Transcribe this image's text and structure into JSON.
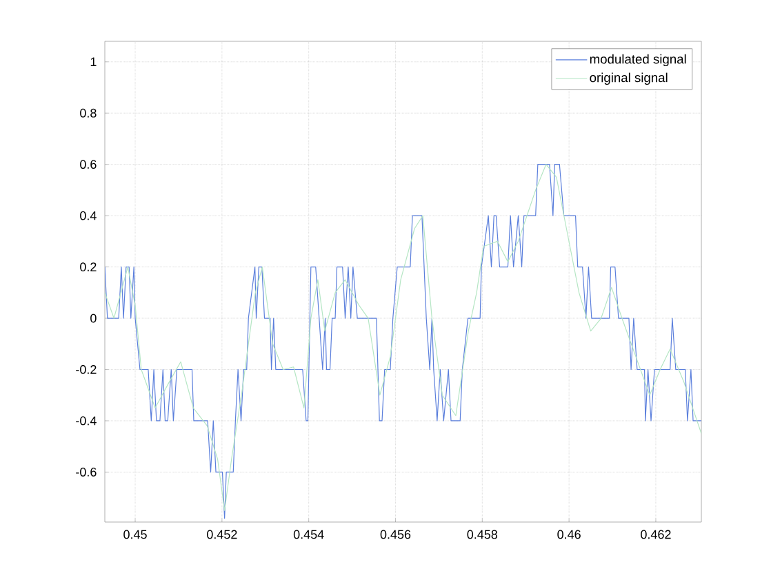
{
  "chart_data": {
    "type": "line",
    "xlim": [
      0.4493,
      0.46305
    ],
    "ylim": [
      -0.795,
      1.08
    ],
    "xticks": [
      0.45,
      0.452,
      0.454,
      0.456,
      0.458,
      0.46,
      0.462
    ],
    "yticks": [
      -0.6,
      -0.4,
      -0.2,
      0,
      0.2,
      0.4,
      0.6,
      0.8,
      1
    ],
    "grid": true,
    "legend": "top right",
    "marker": "none",
    "line_style": "solid",
    "series": [
      {
        "name": "modulated signal",
        "color": "#5b7fdc",
        "x": [
          0.4493,
          0.44936,
          0.44962,
          0.44968,
          0.44973,
          0.44979,
          0.44986,
          0.4499,
          0.44997,
          0.45,
          0.45011,
          0.4503,
          0.45037,
          0.45043,
          0.45049,
          0.45057,
          0.45064,
          0.45069,
          0.45075,
          0.45083,
          0.45088,
          0.45096,
          0.45131,
          0.45135,
          0.45167,
          0.45174,
          0.4518,
          0.45186,
          0.45201,
          0.45206,
          0.4521,
          0.45226,
          0.45231,
          0.45237,
          0.45244,
          0.4525,
          0.45257,
          0.45261,
          0.45276,
          0.45279,
          0.45285,
          0.45292,
          0.45298,
          0.45311,
          0.45314,
          0.45319,
          0.45324,
          0.45386,
          0.45394,
          0.45398,
          0.45405,
          0.45416,
          0.45432,
          0.45438,
          0.45441,
          0.45449,
          0.45454,
          0.45461,
          0.45465,
          0.45478,
          0.45484,
          0.45491,
          0.45497,
          0.45502,
          0.45512,
          0.45556,
          0.45563,
          0.45569,
          0.45575,
          0.45588,
          0.45594,
          0.45604,
          0.45634,
          0.45639,
          0.45661,
          0.45671,
          0.45679,
          0.45684,
          0.45688,
          0.45696,
          0.45703,
          0.45711,
          0.45722,
          0.45728,
          0.45749,
          0.45754,
          0.45767,
          0.45795,
          0.45798,
          0.45814,
          0.45821,
          0.45827,
          0.45832,
          0.4584,
          0.45859,
          0.45865,
          0.45872,
          0.45883,
          0.45891,
          0.45896,
          0.45923,
          0.45928,
          0.45955,
          0.45963,
          0.45967,
          0.45978,
          0.45988,
          0.46015,
          0.4602,
          0.46031,
          0.46039,
          0.46045,
          0.46052,
          0.46093,
          0.46096,
          0.46106,
          0.46114,
          0.46138,
          0.46143,
          0.46149,
          0.46157,
          0.46174,
          0.46176,
          0.46182,
          0.46189,
          0.46197,
          0.46233,
          0.46238,
          0.46246,
          0.46268,
          0.46273,
          0.46281,
          0.46286,
          0.46305
        ],
        "values": [
          0.2,
          0,
          0,
          0.2,
          0,
          0.2,
          0.2,
          0,
          0.2,
          0,
          -0.2,
          -0.2,
          -0.4,
          -0.2,
          -0.4,
          -0.4,
          -0.2,
          -0.4,
          -0.4,
          -0.2,
          -0.4,
          -0.2,
          -0.2,
          -0.4,
          -0.4,
          -0.6,
          -0.4,
          -0.6,
          -0.6,
          -0.78,
          -0.6,
          -0.6,
          -0.4,
          -0.2,
          -0.4,
          -0.2,
          -0.2,
          0,
          0.2,
          0,
          0.2,
          0.2,
          0,
          0,
          -0.2,
          0,
          -0.2,
          -0.2,
          -0.4,
          -0.4,
          0.2,
          0.2,
          -0.2,
          0,
          -0.2,
          -0.2,
          0,
          0,
          0.2,
          0.2,
          0,
          0.2,
          0,
          0.2,
          0,
          0,
          -0.4,
          -0.4,
          -0.2,
          -0.2,
          0,
          0.2,
          0.2,
          0.4,
          0.4,
          0,
          -0.2,
          0,
          -0.2,
          -0.4,
          -0.2,
          -0.4,
          -0.2,
          -0.4,
          -0.4,
          -0.2,
          0,
          0,
          0.2,
          0.4,
          0.2,
          0.4,
          0.4,
          0.2,
          0.2,
          0.4,
          0.2,
          0.4,
          0.2,
          0.4,
          0.4,
          0.6,
          0.6,
          0.4,
          0.6,
          0.6,
          0.4,
          0.4,
          0.2,
          0.2,
          0,
          0.2,
          0,
          0,
          0.2,
          0.2,
          0,
          0,
          -0.2,
          0,
          -0.2,
          -0.2,
          -0.4,
          -0.2,
          -0.4,
          -0.2,
          -0.2,
          0,
          -0.2,
          -0.2,
          -0.4,
          -0.2,
          -0.4,
          -0.4
        ]
      },
      {
        "name": "original signal",
        "color": "#b5e6c4",
        "x": [
          0.4493,
          0.44951,
          0.44983,
          0.45,
          0.45014,
          0.45046,
          0.45078,
          0.45105,
          0.45134,
          0.45166,
          0.4519,
          0.45206,
          0.45222,
          0.45245,
          0.45277,
          0.45293,
          0.45317,
          0.45341,
          0.45365,
          0.45389,
          0.45405,
          0.45421,
          0.45437,
          0.45461,
          0.45484,
          0.45516,
          0.45537,
          0.45564,
          0.45588,
          0.45612,
          0.45644,
          0.45663,
          0.45684,
          0.45708,
          0.45739,
          0.45768,
          0.45787,
          0.45803,
          0.45835,
          0.45859,
          0.45883,
          0.45923,
          0.45947,
          0.45971,
          0.45994,
          0.46023,
          0.4605,
          0.46074,
          0.46098,
          0.46122,
          0.46154,
          0.46186,
          0.4621,
          0.46233,
          0.46265,
          0.46305
        ],
        "values": [
          0.1,
          0,
          0.2,
          0.05,
          -0.2,
          -0.35,
          -0.25,
          -0.17,
          -0.35,
          -0.42,
          -0.55,
          -0.75,
          -0.55,
          -0.3,
          0.1,
          0.2,
          -0.1,
          -0.2,
          -0.19,
          -0.35,
          0,
          0.15,
          -0.05,
          0.1,
          0.15,
          0.05,
          0,
          -0.3,
          -0.15,
          0.15,
          0.35,
          0.4,
          0,
          -0.3,
          -0.38,
          -0.05,
          0.1,
          0.28,
          0.3,
          0.22,
          0.3,
          0.5,
          0.6,
          0.55,
          0.35,
          0.1,
          -0.05,
          0,
          0.12,
          0,
          -0.15,
          -0.3,
          -0.2,
          -0.12,
          -0.25,
          -0.45
        ]
      }
    ]
  }
}
